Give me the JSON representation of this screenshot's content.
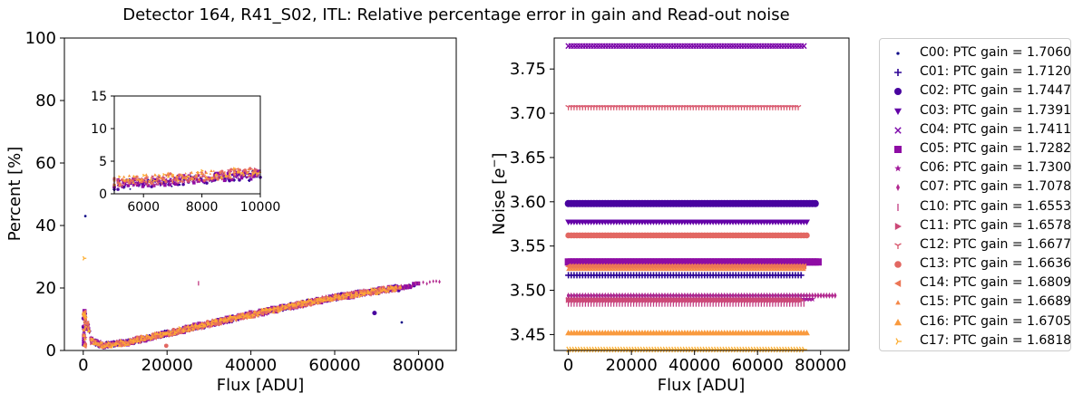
{
  "figure_title": "Detector 164, R41_S02, ITL: Relative percentage error in gain and Read-out noise",
  "palette": [
    "#0d0887",
    "#2e0595",
    "#48039f",
    "#6300a7",
    "#7a02a8",
    "#8e0ca4",
    "#a1199a",
    "#b2288f",
    "#c13b82",
    "#cc4977",
    "#d8566c",
    "#e26762",
    "#ec7656",
    "#f48849",
    "#f99a3e",
    "#fdae32",
    "#fdc527",
    "#f9dd26"
  ],
  "chart_data": [
    {
      "type": "scatter",
      "title": "",
      "xlabel": "Flux [ADU]",
      "ylabel": "Percent [%]",
      "xlim": [
        -4500,
        89000
      ],
      "ylim": [
        0,
        100
      ],
      "xticks": [
        0,
        20000,
        40000,
        60000,
        80000
      ],
      "xtick_labels": [
        "0",
        "20000",
        "40000",
        "60000",
        "80000"
      ],
      "yticks": [
        0,
        20,
        40,
        60,
        80,
        100
      ],
      "ytick_labels": [
        "0",
        "20",
        "40",
        "60",
        "80",
        "100"
      ],
      "trend": {
        "x": [
          100,
          2000,
          5000,
          10000,
          20000,
          40000,
          60000,
          80000,
          85000
        ],
        "y": [
          13,
          3,
          1.5,
          2.5,
          5.5,
          11.5,
          17,
          21,
          22
        ]
      },
      "outliers": [
        {
          "series": "C00",
          "x": 500,
          "y": 43
        },
        {
          "series": "C17",
          "x": 200,
          "y": 29.5
        },
        {
          "series": "C07",
          "x": 85000,
          "y": 22
        },
        {
          "series": "C10",
          "x": 27500,
          "y": 21.5
        },
        {
          "series": "C02",
          "x": 69500,
          "y": 12
        },
        {
          "series": "C00",
          "x": 76000,
          "y": 9
        },
        {
          "series": "C13",
          "x": 19800,
          "y": 1.5
        }
      ],
      "inset": {
        "xlim": [
          5000,
          10000
        ],
        "ylim": [
          0,
          15
        ],
        "xticks": [
          6000,
          8000,
          10000
        ],
        "xtick_labels": [
          "6000",
          "8000",
          "10000"
        ],
        "yticks": [
          0,
          5,
          10,
          15
        ],
        "ytick_labels": [
          "0",
          "5",
          "10",
          "15"
        ],
        "band": {
          "x": [
            5000,
            10000
          ],
          "y": [
            1.6,
            3.2
          ]
        }
      }
    },
    {
      "type": "scatter",
      "title": "",
      "xlabel": "Flux [ADU]",
      "ylabel": "Noise [e^-]",
      "xlim": [
        -4500,
        89000
      ],
      "ylim": [
        3.432,
        3.785
      ],
      "xticks": [
        0,
        20000,
        40000,
        60000,
        80000
      ],
      "xtick_labels": [
        "0",
        "20000",
        "40000",
        "60000",
        "80000"
      ],
      "yticks": [
        3.45,
        3.5,
        3.55,
        3.6,
        3.65,
        3.7,
        3.75
      ],
      "ytick_labels": [
        "3.45",
        "3.50",
        "3.55",
        "3.60",
        "3.65",
        "3.70",
        "3.75"
      ],
      "series": [
        {
          "name": "C00: PTC gain = 1.7060",
          "marker": "dot",
          "noise": 3.494,
          "xmax": 76000
        },
        {
          "name": "C01: PTC gain = 1.7120",
          "marker": "plus",
          "noise": 3.517,
          "xmax": 74000
        },
        {
          "name": "C02: PTC gain = 1.7447",
          "marker": "circle",
          "noise": 3.598,
          "xmax": 79000
        },
        {
          "name": "C03: PTC gain = 1.7391",
          "marker": "triangle-down",
          "noise": 3.577,
          "xmax": 76000
        },
        {
          "name": "C04: PTC gain = 1.7411",
          "marker": "x",
          "noise": 3.776,
          "xmax": 75000
        },
        {
          "name": "C05: PTC gain = 1.7282",
          "marker": "square",
          "noise": 3.532,
          "xmax": 80000
        },
        {
          "name": "C06: PTC gain = 1.7300",
          "marker": "star",
          "noise": 3.49,
          "xmax": 78000
        },
        {
          "name": "C07: PTC gain = 1.7078",
          "marker": "thin-diamond",
          "noise": 3.494,
          "xmax": 85000
        },
        {
          "name": "C10: PTC gain = 1.6553",
          "marker": "vline",
          "noise": 3.485,
          "xmax": 75000
        },
        {
          "name": "C11: PTC gain = 1.6578",
          "marker": "triangle-right",
          "noise": 3.489,
          "xmax": 74000
        },
        {
          "name": "C12: PTC gain = 1.6677",
          "marker": "tri-down",
          "noise": 3.707,
          "xmax": 73000
        },
        {
          "name": "C13: PTC gain = 1.6636",
          "marker": "octagon",
          "noise": 3.562,
          "xmax": 76000
        },
        {
          "name": "C14: PTC gain = 1.6809",
          "marker": "triangle-left",
          "noise": 3.527,
          "xmax": 75000
        },
        {
          "name": "C15: PTC gain = 1.6689",
          "marker": "triangle-up-small",
          "noise": 3.524,
          "xmax": 75000
        },
        {
          "name": "C16: PTC gain = 1.6705",
          "marker": "triangle-up",
          "noise": 3.452,
          "xmax": 76000
        },
        {
          "name": "C17: PTC gain = 1.6818",
          "marker": "tri-right",
          "noise": 3.433,
          "xmax": 75000
        }
      ]
    }
  ]
}
